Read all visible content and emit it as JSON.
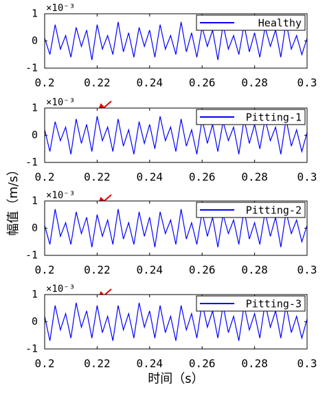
{
  "chart_data": [
    {
      "type": "line",
      "y_multiplier": "×10⁻³",
      "x": [
        0.2,
        0.202,
        0.204,
        0.206,
        0.208,
        0.21,
        0.212,
        0.214,
        0.216,
        0.218,
        0.22,
        0.222,
        0.224,
        0.226,
        0.228,
        0.23,
        0.232,
        0.234,
        0.236,
        0.238,
        0.24,
        0.242,
        0.244,
        0.246,
        0.248,
        0.25,
        0.252,
        0.254,
        0.256,
        0.258,
        0.26,
        0.262,
        0.264,
        0.266,
        0.268,
        0.27,
        0.272,
        0.274,
        0.276,
        0.278,
        0.28,
        0.282,
        0.284,
        0.286,
        0.288,
        0.29,
        0.292,
        0.294,
        0.296,
        0.298,
        0.3
      ],
      "series": [
        {
          "name": "Healthy",
          "color": "#0000ff",
          "values": [
            0.1,
            -0.5,
            0.6,
            -0.3,
            0.2,
            -0.6,
            0.5,
            -0.2,
            0.4,
            -0.7,
            0.6,
            -0.3,
            0.2,
            -0.5,
            0.7,
            -0.4,
            0.3,
            -0.6,
            0.5,
            -0.2,
            0.4,
            -0.6,
            0.6,
            -0.3,
            0.2,
            -0.5,
            0.7,
            -0.4,
            0.3,
            -0.6,
            0.5,
            -0.2,
            0.4,
            -0.7,
            0.6,
            -0.3,
            0.2,
            -0.5,
            0.6,
            -0.4,
            0.3,
            -0.6,
            0.5,
            -0.2,
            0.4,
            -0.6,
            0.7,
            -0.3,
            0.2,
            -0.5,
            0.1
          ]
        }
      ],
      "xlim": [
        0.2,
        0.3
      ],
      "ylim": [
        -1,
        1
      ],
      "xticks": [
        0.2,
        0.22,
        0.24,
        0.26,
        0.28,
        0.3
      ],
      "yticks": [
        -1,
        0,
        1
      ],
      "legend": "upper right"
    },
    {
      "type": "line",
      "y_multiplier": "×10⁻³",
      "x": [
        0.2,
        0.202,
        0.204,
        0.206,
        0.208,
        0.21,
        0.212,
        0.214,
        0.216,
        0.218,
        0.22,
        0.222,
        0.224,
        0.226,
        0.228,
        0.23,
        0.232,
        0.234,
        0.236,
        0.238,
        0.24,
        0.242,
        0.244,
        0.246,
        0.248,
        0.25,
        0.252,
        0.254,
        0.256,
        0.258,
        0.26,
        0.262,
        0.264,
        0.266,
        0.268,
        0.27,
        0.272,
        0.274,
        0.276,
        0.278,
        0.28,
        0.282,
        0.284,
        0.286,
        0.288,
        0.29,
        0.292,
        0.294,
        0.296,
        0.298,
        0.3
      ],
      "series": [
        {
          "name": "Pitting-1",
          "color": "#0000ff",
          "values": [
            0.2,
            -0.6,
            0.5,
            -0.2,
            0.3,
            -0.7,
            0.6,
            -0.3,
            0.4,
            -0.6,
            0.7,
            -0.2,
            0.3,
            -0.6,
            0.6,
            -0.4,
            0.2,
            -0.7,
            0.5,
            -0.3,
            0.4,
            -0.5,
            0.7,
            -0.2,
            0.3,
            -0.6,
            0.6,
            -0.4,
            0.2,
            -0.7,
            0.6,
            -0.3,
            0.4,
            -0.6,
            0.5,
            -0.2,
            0.3,
            -0.7,
            0.6,
            -0.3,
            0.4,
            -0.5,
            0.6,
            -0.2,
            0.3,
            -0.7,
            0.6,
            -0.4,
            0.2,
            -0.6,
            0.1
          ]
        }
      ],
      "xlim": [
        0.2,
        0.3
      ],
      "ylim": [
        -1,
        1
      ],
      "xticks": [
        0.2,
        0.22,
        0.24,
        0.26,
        0.28,
        0.3
      ],
      "yticks": [
        -1,
        0,
        1
      ],
      "legend": "upper right"
    },
    {
      "type": "line",
      "y_multiplier": "×10⁻³",
      "x": [
        0.2,
        0.202,
        0.204,
        0.206,
        0.208,
        0.21,
        0.212,
        0.214,
        0.216,
        0.218,
        0.22,
        0.222,
        0.224,
        0.226,
        0.228,
        0.23,
        0.232,
        0.234,
        0.236,
        0.238,
        0.24,
        0.242,
        0.244,
        0.246,
        0.248,
        0.25,
        0.252,
        0.254,
        0.256,
        0.258,
        0.26,
        0.262,
        0.264,
        0.266,
        0.268,
        0.27,
        0.272,
        0.274,
        0.276,
        0.278,
        0.28,
        0.282,
        0.284,
        0.286,
        0.288,
        0.29,
        0.292,
        0.294,
        0.296,
        0.298,
        0.3
      ],
      "series": [
        {
          "name": "Pitting-2",
          "color": "#0000ff",
          "values": [
            0.1,
            -0.6,
            0.7,
            -0.3,
            0.2,
            -0.6,
            0.6,
            -0.2,
            0.4,
            -0.7,
            0.5,
            -0.3,
            0.3,
            -0.6,
            0.7,
            -0.4,
            0.2,
            -0.6,
            0.6,
            -0.3,
            0.4,
            -0.7,
            0.6,
            -0.2,
            0.3,
            -0.6,
            0.7,
            -0.4,
            0.2,
            -0.6,
            0.6,
            -0.3,
            0.4,
            -0.7,
            0.5,
            -0.2,
            0.3,
            -0.6,
            0.7,
            -0.4,
            0.2,
            -0.6,
            0.6,
            -0.3,
            0.4,
            -0.7,
            0.6,
            -0.2,
            0.3,
            -0.5,
            0.1
          ]
        }
      ],
      "xlim": [
        0.2,
        0.3
      ],
      "ylim": [
        -1,
        1
      ],
      "xticks": [
        0.2,
        0.22,
        0.24,
        0.26,
        0.28,
        0.3
      ],
      "yticks": [
        -1,
        0,
        1
      ],
      "legend": "upper right"
    },
    {
      "type": "line",
      "y_multiplier": "×10⁻³",
      "x": [
        0.2,
        0.202,
        0.204,
        0.206,
        0.208,
        0.21,
        0.212,
        0.214,
        0.216,
        0.218,
        0.22,
        0.222,
        0.224,
        0.226,
        0.228,
        0.23,
        0.232,
        0.234,
        0.236,
        0.238,
        0.24,
        0.242,
        0.244,
        0.246,
        0.248,
        0.25,
        0.252,
        0.254,
        0.256,
        0.258,
        0.26,
        0.262,
        0.264,
        0.266,
        0.268,
        0.27,
        0.272,
        0.274,
        0.276,
        0.278,
        0.28,
        0.282,
        0.284,
        0.286,
        0.288,
        0.29,
        0.292,
        0.294,
        0.296,
        0.298,
        0.3
      ],
      "series": [
        {
          "name": "Pitting-3",
          "color": "#0000ff",
          "values": [
            0.2,
            -0.7,
            0.6,
            -0.3,
            0.3,
            -0.6,
            0.7,
            -0.2,
            0.4,
            -0.6,
            0.6,
            -0.4,
            0.2,
            -0.7,
            0.6,
            -0.3,
            0.3,
            -0.6,
            0.7,
            -0.2,
            0.4,
            -0.6,
            0.6,
            -0.4,
            0.2,
            -0.7,
            0.6,
            -0.3,
            0.3,
            -0.6,
            0.7,
            -0.2,
            0.4,
            -0.6,
            0.6,
            -0.4,
            0.2,
            -0.7,
            0.6,
            -0.3,
            0.3,
            -0.6,
            0.7,
            -0.2,
            0.4,
            -0.6,
            0.6,
            -0.4,
            0.2,
            -0.6,
            0.1
          ]
        }
      ],
      "xlim": [
        0.2,
        0.3
      ],
      "ylim": [
        -1,
        1
      ],
      "xticks": [
        0.2,
        0.22,
        0.24,
        0.26,
        0.28,
        0.3
      ],
      "yticks": [
        -1,
        0,
        1
      ],
      "legend": "upper right",
      "xlabel": "时间（s）"
    }
  ],
  "ylabel": "幅值（m/s）"
}
